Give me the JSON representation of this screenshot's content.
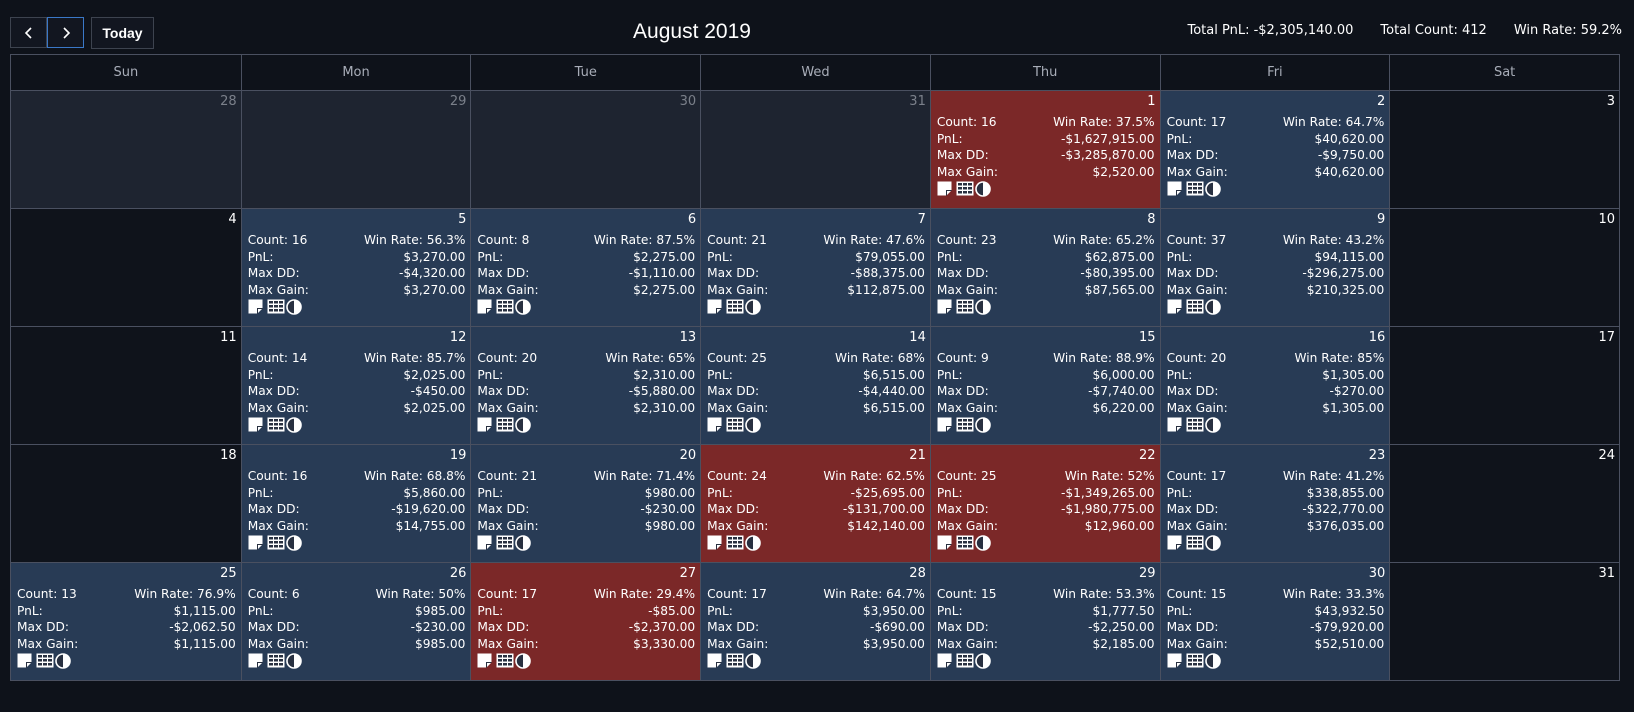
{
  "toolbar": {
    "prev_label": "‹",
    "next_label": "›",
    "today_label": "Today",
    "title": "August 2019",
    "total_pnl": "Total PnL: -$2,305,140.00",
    "total_count": "Total Count: 412",
    "win_rate": "Win Rate: 59.2%"
  },
  "colors": {
    "positive_day": "#283b55",
    "negative_day": "#7b2828",
    "background": "#0e121a"
  },
  "labels": {
    "count": "Count:",
    "win_rate": "Win Rate:",
    "pnl": "PnL:",
    "max_dd": "Max DD:",
    "max_gain": "Max Gain:"
  },
  "icons": [
    "note-icon",
    "table-icon",
    "contrast-icon"
  ],
  "weekdays": [
    "Sun",
    "Mon",
    "Tue",
    "Wed",
    "Thu",
    "Fri",
    "Sat"
  ],
  "weeks": [
    [
      {
        "day": "28",
        "type": "other"
      },
      {
        "day": "29",
        "type": "other"
      },
      {
        "day": "30",
        "type": "other"
      },
      {
        "day": "31",
        "type": "other"
      },
      {
        "day": "1",
        "type": "neg",
        "count": "16",
        "win_rate": "37.5%",
        "pnl": "-$1,627,915.00",
        "max_dd": "-$3,285,870.00",
        "max_gain": "$2,520.00"
      },
      {
        "day": "2",
        "type": "pos",
        "count": "17",
        "win_rate": "64.7%",
        "pnl": "$40,620.00",
        "max_dd": "-$9,750.00",
        "max_gain": "$40,620.00"
      },
      {
        "day": "3",
        "type": "empty"
      }
    ],
    [
      {
        "day": "4",
        "type": "empty"
      },
      {
        "day": "5",
        "type": "pos",
        "count": "16",
        "win_rate": "56.3%",
        "pnl": "$3,270.00",
        "max_dd": "-$4,320.00",
        "max_gain": "$3,270.00"
      },
      {
        "day": "6",
        "type": "pos",
        "count": "8",
        "win_rate": "87.5%",
        "pnl": "$2,275.00",
        "max_dd": "-$1,110.00",
        "max_gain": "$2,275.00"
      },
      {
        "day": "7",
        "type": "pos",
        "count": "21",
        "win_rate": "47.6%",
        "pnl": "$79,055.00",
        "max_dd": "-$88,375.00",
        "max_gain": "$112,875.00"
      },
      {
        "day": "8",
        "type": "pos",
        "count": "23",
        "win_rate": "65.2%",
        "pnl": "$62,875.00",
        "max_dd": "-$80,395.00",
        "max_gain": "$87,565.00"
      },
      {
        "day": "9",
        "type": "pos",
        "count": "37",
        "win_rate": "43.2%",
        "pnl": "$94,115.00",
        "max_dd": "-$296,275.00",
        "max_gain": "$210,325.00"
      },
      {
        "day": "10",
        "type": "empty"
      }
    ],
    [
      {
        "day": "11",
        "type": "empty"
      },
      {
        "day": "12",
        "type": "pos",
        "count": "14",
        "win_rate": "85.7%",
        "pnl": "$2,025.00",
        "max_dd": "-$450.00",
        "max_gain": "$2,025.00"
      },
      {
        "day": "13",
        "type": "pos",
        "count": "20",
        "win_rate": "65%",
        "pnl": "$2,310.00",
        "max_dd": "-$5,880.00",
        "max_gain": "$2,310.00"
      },
      {
        "day": "14",
        "type": "pos",
        "count": "25",
        "win_rate": "68%",
        "pnl": "$6,515.00",
        "max_dd": "-$4,440.00",
        "max_gain": "$6,515.00"
      },
      {
        "day": "15",
        "type": "pos",
        "count": "9",
        "win_rate": "88.9%",
        "pnl": "$6,000.00",
        "max_dd": "-$7,740.00",
        "max_gain": "$6,220.00"
      },
      {
        "day": "16",
        "type": "pos",
        "count": "20",
        "win_rate": "85%",
        "pnl": "$1,305.00",
        "max_dd": "-$270.00",
        "max_gain": "$1,305.00"
      },
      {
        "day": "17",
        "type": "empty"
      }
    ],
    [
      {
        "day": "18",
        "type": "empty"
      },
      {
        "day": "19",
        "type": "pos",
        "count": "16",
        "win_rate": "68.8%",
        "pnl": "$5,860.00",
        "max_dd": "-$19,620.00",
        "max_gain": "$14,755.00"
      },
      {
        "day": "20",
        "type": "pos",
        "count": "21",
        "win_rate": "71.4%",
        "pnl": "$980.00",
        "max_dd": "-$230.00",
        "max_gain": "$980.00"
      },
      {
        "day": "21",
        "type": "neg",
        "count": "24",
        "win_rate": "62.5%",
        "pnl": "-$25,695.00",
        "max_dd": "-$131,700.00",
        "max_gain": "$142,140.00"
      },
      {
        "day": "22",
        "type": "neg",
        "count": "25",
        "win_rate": "52%",
        "pnl": "-$1,349,265.00",
        "max_dd": "-$1,980,775.00",
        "max_gain": "$12,960.00"
      },
      {
        "day": "23",
        "type": "pos",
        "count": "17",
        "win_rate": "41.2%",
        "pnl": "$338,855.00",
        "max_dd": "-$322,770.00",
        "max_gain": "$376,035.00"
      },
      {
        "day": "24",
        "type": "empty"
      }
    ],
    [
      {
        "day": "25",
        "type": "pos",
        "count": "13",
        "win_rate": "76.9%",
        "pnl": "$1,115.00",
        "max_dd": "-$2,062.50",
        "max_gain": "$1,115.00"
      },
      {
        "day": "26",
        "type": "pos",
        "count": "6",
        "win_rate": "50%",
        "pnl": "$985.00",
        "max_dd": "-$230.00",
        "max_gain": "$985.00"
      },
      {
        "day": "27",
        "type": "neg",
        "count": "17",
        "win_rate": "29.4%",
        "pnl": "-$85.00",
        "max_dd": "-$2,370.00",
        "max_gain": "$3,330.00"
      },
      {
        "day": "28",
        "type": "pos",
        "count": "17",
        "win_rate": "64.7%",
        "pnl": "$3,950.00",
        "max_dd": "-$690.00",
        "max_gain": "$3,950.00"
      },
      {
        "day": "29",
        "type": "pos",
        "count": "15",
        "win_rate": "53.3%",
        "pnl": "$1,777.50",
        "max_dd": "-$2,250.00",
        "max_gain": "$2,185.00"
      },
      {
        "day": "30",
        "type": "pos",
        "count": "15",
        "win_rate": "33.3%",
        "pnl": "$43,932.50",
        "max_dd": "-$79,920.00",
        "max_gain": "$52,510.00"
      },
      {
        "day": "31",
        "type": "empty"
      }
    ]
  ]
}
